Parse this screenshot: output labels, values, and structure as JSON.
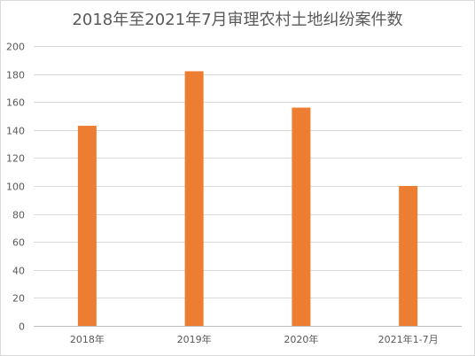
{
  "chart_data": {
    "type": "bar",
    "title": "2018年至2021年7月审理农村土地纠纷案件数",
    "categories": [
      "2018年",
      "2019年",
      "2020年",
      "2021年1-7月"
    ],
    "series": [
      {
        "values": [
          143,
          182,
          156,
          100
        ]
      }
    ],
    "ylim": [
      0,
      200
    ],
    "yticks": [
      0,
      20,
      40,
      60,
      80,
      100,
      120,
      140,
      160,
      180,
      200
    ],
    "grid": true,
    "legend": "none",
    "bar_color": "#ed7d31",
    "grid_color": "#d9d9d9",
    "axis_color": "#bfbfbf",
    "text_color": "#595959"
  }
}
